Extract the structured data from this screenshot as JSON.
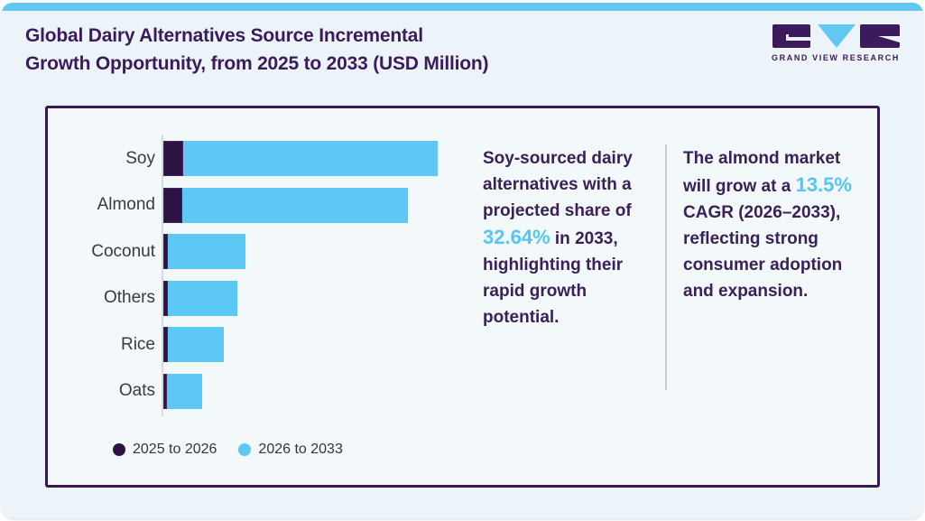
{
  "header": {
    "title_line1": "Global Dairy Alternatives Source Incremental",
    "title_line2": "Growth Opportunity, from 2025 to 2033 (USD Million)",
    "logo_text": "GRAND VIEW RESEARCH"
  },
  "insights": {
    "soy": {
      "pre": "Soy-sourced dairy alternatives with a projected share of ",
      "highlight": "32.64%",
      "post": " in 2033, highlighting their rapid growth potential."
    },
    "almond": {
      "pre": "The almond market will grow at a ",
      "highlight": "13.5%",
      "post": " CAGR (2026–2033), reflecting strong consumer adoption and expansion."
    }
  },
  "colors": {
    "accent_blue": "#5cc8f3",
    "dark_purple": "#2e1244",
    "title_purple": "#3b1b5c",
    "highlight_blue": "#53c7f3",
    "card_border": "#371a52"
  },
  "chart_data": {
    "type": "bar",
    "orientation": "horizontal",
    "stacked": true,
    "title": "Global Dairy Alternatives Source Incremental Growth Opportunity, from 2025 to 2033 (USD Million)",
    "categories": [
      "Soy",
      "Almond",
      "Coconut",
      "Others",
      "Rice",
      "Oats"
    ],
    "series": [
      {
        "name": "2025 to 2026",
        "color": "#2e1244",
        "values": [
          7.2,
          6.9,
          1.6,
          1.6,
          1.6,
          1.3
        ]
      },
      {
        "name": "2026 to 2033",
        "color": "#5cc8f3",
        "values": [
          92.8,
          82.2,
          28.3,
          25.4,
          20.4,
          12.9
        ]
      }
    ],
    "totals": [
      100,
      89.1,
      29.9,
      27.0,
      22.0,
      14.2
    ],
    "xlabel": "",
    "ylabel": "",
    "xlim": [
      0,
      100
    ],
    "grid": false,
    "legend_position": "bottom",
    "note": "No numeric axis is shown in the figure; values are relative stacked bar lengths expressed as % of the longest bar (Soy = 100)."
  }
}
